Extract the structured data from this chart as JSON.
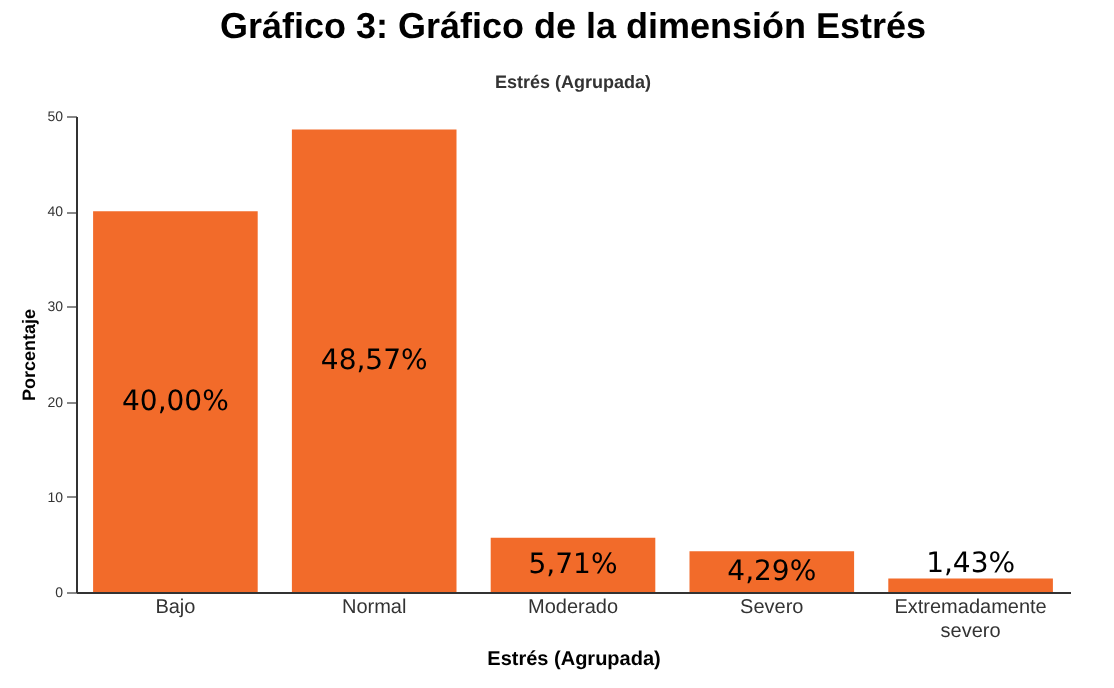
{
  "chart_data": {
    "type": "bar",
    "title": "Gráfico 3: Gráfico de la dimensión Estrés",
    "subtitle": "Estrés (Agrupada)",
    "xlabel": "Estrés (Agrupada)",
    "ylabel": "Porcentaje",
    "categories": [
      "Bajo",
      "Normal",
      "Moderado",
      "Severo",
      "Extremadamente severo"
    ],
    "values": [
      40.0,
      48.57,
      5.71,
      4.29,
      1.43
    ],
    "value_labels": [
      "40,00%",
      "48,57%",
      "5,71%",
      "4,29%",
      "1,43%"
    ],
    "color": "#f26b2a",
    "ylim": [
      0,
      50
    ],
    "yticks": [
      0,
      10,
      20,
      30,
      40,
      50
    ],
    "grid": false
  }
}
